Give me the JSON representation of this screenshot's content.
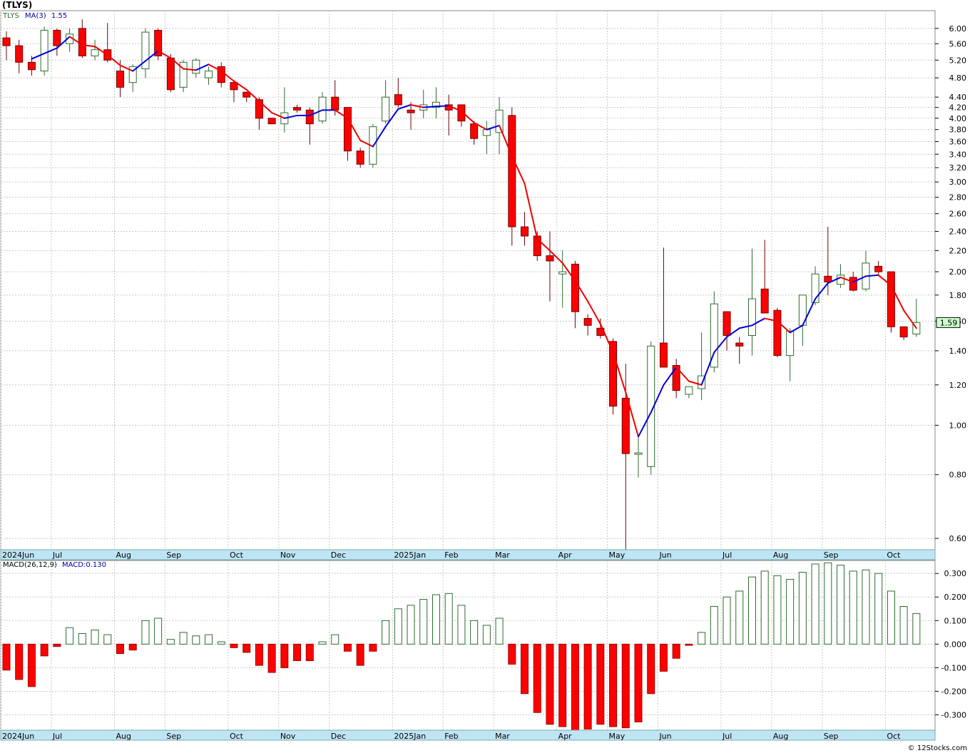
{
  "page": {
    "ticker_title": "(TLYS)",
    "footer": "© 12Stocks.com"
  },
  "colors": {
    "up_candle": "#2e6b2e",
    "down_candle": "#ff0000",
    "ma_up": "#0000dd",
    "ma_down": "#ee0000",
    "grid": "#c8c8c8",
    "axis_bar": "#bfe5f5",
    "price_badge": "#ccffcc"
  },
  "chart_data": [
    {
      "type": "candlestick",
      "ticker": "TLYS",
      "legend": {
        "ticker_label": "TLYS",
        "ma_label": "MA(3)",
        "ma_value": "1.55"
      },
      "scale": "log",
      "ylim": [
        0.57,
        6.5
      ],
      "y_ticks": [
        0.6,
        0.8,
        1.0,
        1.2,
        1.4,
        1.6,
        1.8,
        2.0,
        2.2,
        2.4,
        2.6,
        2.8,
        3.0,
        3.2,
        3.4,
        3.6,
        3.8,
        4.0,
        4.2,
        4.4,
        4.8,
        5.2,
        5.6,
        6.0
      ],
      "y_tick_labels": [
        "0.60",
        "0.80",
        "1.00",
        "1.20",
        "1.40",
        "1.60",
        "1.80",
        "2.00",
        "2.20",
        "2.40",
        "2.60",
        "2.80",
        "3.00",
        "3.20",
        "3.40",
        "3.60",
        "3.80",
        "4.00",
        "4.20",
        "4.40",
        "4.80",
        "5.20",
        "5.60",
        "6.00"
      ],
      "last_price_label": "1.59",
      "last_price": 1.59,
      "month_labels": [
        {
          "label": "2024Jun",
          "week": 0
        },
        {
          "label": "Jul",
          "week": 4
        },
        {
          "label": "Aug",
          "week": 9
        },
        {
          "label": "Sep",
          "week": 13
        },
        {
          "label": "Oct",
          "week": 18
        },
        {
          "label": "Nov",
          "week": 22
        },
        {
          "label": "Dec",
          "week": 26
        },
        {
          "label": "2025Jan",
          "week": 31
        },
        {
          "label": "Feb",
          "week": 35
        },
        {
          "label": "Mar",
          "week": 39
        },
        {
          "label": "Apr",
          "week": 44
        },
        {
          "label": "May",
          "week": 48
        },
        {
          "label": "Jun",
          "week": 52
        },
        {
          "label": "Jul",
          "week": 57
        },
        {
          "label": "Aug",
          "week": 61
        },
        {
          "label": "Sep",
          "week": 65
        },
        {
          "label": "Oct",
          "week": 70
        }
      ],
      "ohlc": [
        [
          5.75,
          5.92,
          5.2,
          5.55
        ],
        [
          5.55,
          5.7,
          4.9,
          5.15
        ],
        [
          5.15,
          5.3,
          4.85,
          4.98
        ],
        [
          4.95,
          6.05,
          4.85,
          5.95
        ],
        [
          5.95,
          6.0,
          5.3,
          5.55
        ],
        [
          5.6,
          6.0,
          5.4,
          5.85
        ],
        [
          6.0,
          6.25,
          5.25,
          5.3
        ],
        [
          5.3,
          5.7,
          5.2,
          5.45
        ],
        [
          5.45,
          6.15,
          5.15,
          5.2
        ],
        [
          4.95,
          5.2,
          4.4,
          4.6
        ],
        [
          4.7,
          5.1,
          4.5,
          5.05
        ],
        [
          5.0,
          6.0,
          4.8,
          5.9
        ],
        [
          5.95,
          6.0,
          5.2,
          5.3
        ],
        [
          5.25,
          5.35,
          4.5,
          4.55
        ],
        [
          4.6,
          5.2,
          4.5,
          5.15
        ],
        [
          4.9,
          5.25,
          4.8,
          5.2
        ],
        [
          4.8,
          5.05,
          4.65,
          4.95
        ],
        [
          5.05,
          5.15,
          4.6,
          4.7
        ],
        [
          4.7,
          4.75,
          4.3,
          4.55
        ],
        [
          4.5,
          4.5,
          4.3,
          4.4
        ],
        [
          4.35,
          4.4,
          3.8,
          4.0
        ],
        [
          4.0,
          4.0,
          3.9,
          3.9
        ],
        [
          3.9,
          4.6,
          3.75,
          4.1
        ],
        [
          4.2,
          4.25,
          4.1,
          4.15
        ],
        [
          4.15,
          4.2,
          3.55,
          3.9
        ],
        [
          3.95,
          4.5,
          3.9,
          4.4
        ],
        [
          4.4,
          4.75,
          4.05,
          4.15
        ],
        [
          4.2,
          4.2,
          3.3,
          3.45
        ],
        [
          3.45,
          3.5,
          3.2,
          3.25
        ],
        [
          3.25,
          3.9,
          3.2,
          3.85
        ],
        [
          3.95,
          4.75,
          3.9,
          4.4
        ],
        [
          4.45,
          4.8,
          4.2,
          4.25
        ],
        [
          4.15,
          4.3,
          3.8,
          4.1
        ],
        [
          4.15,
          4.55,
          4.0,
          4.25
        ],
        [
          4.2,
          4.6,
          4.0,
          4.3
        ],
        [
          4.25,
          4.45,
          3.7,
          4.15
        ],
        [
          4.25,
          4.25,
          3.85,
          3.95
        ],
        [
          3.9,
          3.95,
          3.55,
          3.65
        ],
        [
          3.7,
          3.95,
          3.4,
          3.8
        ],
        [
          3.75,
          4.4,
          3.4,
          4.15
        ],
        [
          4.05,
          4.2,
          2.25,
          2.45
        ],
        [
          2.45,
          2.62,
          2.25,
          2.35
        ],
        [
          2.35,
          2.4,
          2.1,
          2.15
        ],
        [
          2.15,
          2.4,
          1.75,
          2.1
        ],
        [
          1.98,
          2.2,
          1.7,
          2.0
        ],
        [
          2.07,
          2.1,
          1.55,
          1.67
        ],
        [
          1.62,
          1.65,
          1.5,
          1.57
        ],
        [
          1.55,
          1.62,
          1.48,
          1.5
        ],
        [
          1.46,
          1.48,
          1.05,
          1.09
        ],
        [
          1.13,
          1.32,
          0.57,
          0.88
        ],
        [
          0.88,
          0.95,
          0.79,
          0.88
        ],
        [
          0.83,
          1.46,
          0.8,
          1.43
        ],
        [
          1.45,
          2.23,
          1.3,
          1.3
        ],
        [
          1.31,
          1.35,
          1.13,
          1.17
        ],
        [
          1.15,
          1.19,
          1.13,
          1.19
        ],
        [
          1.18,
          1.52,
          1.12,
          1.25
        ],
        [
          1.3,
          1.83,
          1.27,
          1.73
        ],
        [
          1.67,
          1.67,
          1.4,
          1.5
        ],
        [
          1.45,
          1.49,
          1.32,
          1.43
        ],
        [
          1.5,
          2.22,
          1.37,
          1.77
        ],
        [
          1.85,
          2.31,
          1.69,
          1.66
        ],
        [
          1.68,
          1.7,
          1.36,
          1.37
        ],
        [
          1.37,
          1.55,
          1.22,
          1.53
        ],
        [
          1.57,
          1.8,
          1.43,
          1.8
        ],
        [
          1.74,
          2.05,
          1.72,
          1.98
        ],
        [
          1.96,
          2.45,
          1.8,
          1.91
        ],
        [
          1.89,
          2.07,
          1.86,
          1.97
        ],
        [
          1.95,
          2.0,
          1.83,
          1.84
        ],
        [
          1.85,
          2.2,
          1.83,
          2.08
        ],
        [
          2.05,
          2.1,
          1.96,
          2.0
        ],
        [
          2.0,
          2.0,
          1.52,
          1.56
        ],
        [
          1.56,
          1.56,
          1.47,
          1.49
        ],
        [
          1.51,
          1.77,
          1.49,
          1.59
        ]
      ],
      "ma": [
        null,
        null,
        5.23,
        5.36,
        5.49,
        5.78,
        5.57,
        5.53,
        5.32,
        5.08,
        4.95,
        5.18,
        5.42,
        5.25,
        5.0,
        4.97,
        5.1,
        4.95,
        4.73,
        4.55,
        4.32,
        4.1,
        4.0,
        4.05,
        4.05,
        4.15,
        4.15,
        4.0,
        3.62,
        3.52,
        3.85,
        4.17,
        4.25,
        4.2,
        4.22,
        4.23,
        4.13,
        3.92,
        3.8,
        3.87,
        3.37,
        2.98,
        2.32,
        2.2,
        2.08,
        1.92,
        1.75,
        1.58,
        1.39,
        1.16,
        0.95,
        1.06,
        1.2,
        1.3,
        1.22,
        1.2,
        1.39,
        1.49,
        1.55,
        1.57,
        1.62,
        1.6,
        1.52,
        1.57,
        1.77,
        1.9,
        1.95,
        1.91,
        1.96,
        1.97,
        1.88,
        1.68,
        1.55
      ]
    },
    {
      "type": "bar",
      "title": "MACD(26,12,9)",
      "legend": {
        "name": "MACD(26,12,9)",
        "value_label": "MACD:0.130"
      },
      "ylim": [
        -0.365,
        0.355
      ],
      "y_ticks": [
        0.3,
        0.2,
        0.1,
        0.0,
        -0.1,
        -0.2,
        -0.3
      ],
      "y_tick_labels": [
        "0.300",
        "0.200",
        "0.100",
        "0.000",
        "-0.100",
        "-0.200",
        "-0.300"
      ],
      "values": [
        -0.11,
        -0.15,
        -0.18,
        -0.05,
        -0.01,
        0.07,
        0.045,
        0.06,
        0.04,
        -0.04,
        -0.025,
        0.1,
        0.11,
        0.02,
        0.05,
        0.035,
        0.04,
        0.01,
        -0.015,
        -0.035,
        -0.09,
        -0.12,
        -0.1,
        -0.07,
        -0.07,
        0.01,
        0.04,
        -0.03,
        -0.09,
        -0.03,
        0.1,
        0.15,
        0.165,
        0.19,
        0.21,
        0.215,
        0.165,
        0.1,
        0.08,
        0.11,
        -0.085,
        -0.21,
        -0.29,
        -0.34,
        -0.35,
        -0.365,
        -0.36,
        -0.34,
        -0.35,
        -0.355,
        -0.33,
        -0.21,
        -0.115,
        -0.06,
        -0.005,
        0.05,
        0.16,
        0.2,
        0.225,
        0.285,
        0.31,
        0.29,
        0.275,
        0.305,
        0.34,
        0.345,
        0.335,
        0.31,
        0.315,
        0.3,
        0.225,
        0.16,
        0.13
      ]
    }
  ]
}
